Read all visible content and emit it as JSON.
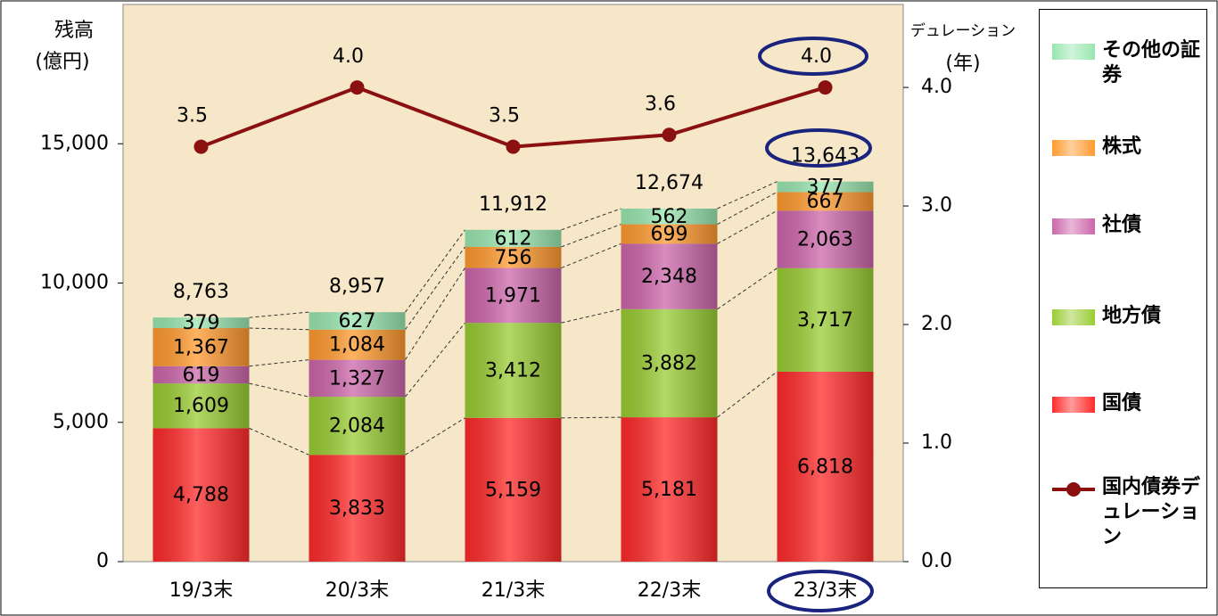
{
  "chart_data": {
    "type": "bar",
    "ylabel": [
      "残高",
      "(億円)"
    ],
    "y2label": [
      "デュレーション",
      "(年)"
    ],
    "categories": [
      "19/3末",
      "20/3末",
      "21/3末",
      "22/3末",
      "23/3末"
    ],
    "series": [
      {
        "name": "国債",
        "color": "#ff2a2a",
        "values": [
          4788,
          3833,
          5159,
          5181,
          6818
        ],
        "value_labels": [
          "4,788",
          "3,833",
          "5,159",
          "5,181",
          "6,818"
        ]
      },
      {
        "name": "地方債",
        "color": "#99cc33",
        "values": [
          1609,
          2084,
          3412,
          3882,
          3717
        ],
        "value_labels": [
          "1,609",
          "2,084",
          "3,412",
          "3,882",
          "3,717"
        ]
      },
      {
        "name": "社債",
        "color": "#cc66aa",
        "values": [
          619,
          1327,
          1971,
          2348,
          2063
        ],
        "value_labels": [
          "619",
          "1,327",
          "1,971",
          "2,348",
          "2,063"
        ]
      },
      {
        "name": "株式",
        "color": "#ff9a2e",
        "values": [
          1367,
          1084,
          756,
          699,
          667
        ],
        "value_labels": [
          "1,367",
          "1,084",
          "756",
          "699",
          "667"
        ]
      },
      {
        "name": "その他の証券",
        "color": "#99e6b0",
        "values": [
          379,
          627,
          612,
          562,
          377
        ],
        "value_labels": [
          "379",
          "627",
          "612",
          "562",
          "377"
        ]
      },
      {
        "name": "国内債券デュレーション",
        "color": "#8b1010",
        "type": "line",
        "axis": "y2",
        "values": [
          3.5,
          4.0,
          3.5,
          3.6,
          4.0
        ],
        "value_labels": [
          "3.5",
          "4.0",
          "3.5",
          "3.6",
          "4.0"
        ]
      }
    ],
    "totals": [
      8763,
      8957,
      11912,
      12674,
      13643
    ],
    "total_labels": [
      "8,763",
      "8,957",
      "11,912",
      "12,674",
      "13,643"
    ],
    "ylim": [
      0,
      20000
    ],
    "yticks": [
      0,
      {
        "value": 5000,
        "label": "5,000"
      },
      {
        "value": 10000,
        "label": "10,000"
      },
      {
        "value": 15000,
        "label": "15,000"
      }
    ],
    "y2lim": [
      0,
      4.7
    ],
    "y2ticks": [
      {
        "value": 0,
        "label": "0.0"
      },
      {
        "value": 1,
        "label": "1.0"
      },
      {
        "value": 2,
        "label": "2.0"
      },
      {
        "value": 3,
        "label": "3.0"
      },
      {
        "value": 4,
        "label": "4.0"
      }
    ]
  }
}
